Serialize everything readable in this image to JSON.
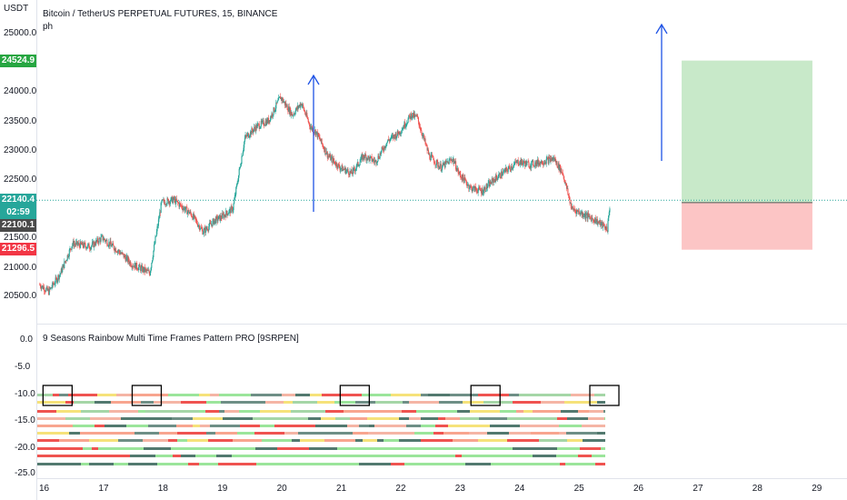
{
  "scale_unit": "USDT",
  "chart_title": "Bitcoin / TetherUS PERPETUAL FUTURES, 15, BINANCE",
  "chart_subtitle": "ph",
  "indicator_title": "9 Seasons Rainbow Multi Time Frames Pattern PRO [9SRPEN]",
  "price_axis": [
    "25000.0",
    "24500.0",
    "24000.0",
    "23500.0",
    "23000.0",
    "22500.0",
    "22000.0",
    "21500.0",
    "21000.0",
    "20500.0"
  ],
  "price_tags": {
    "target": {
      "label": "24524.9",
      "color": "#26a641"
    },
    "last": {
      "label": "22140.4",
      "color": "#26a69a"
    },
    "countdown": {
      "label": "02:59",
      "color": "#26a69a"
    },
    "entry": {
      "label": "22100.1",
      "color": "#4a4a4a"
    },
    "stop": {
      "label": "21296.5",
      "color": "#f23645"
    }
  },
  "indicator_axis": [
    "0.0",
    "-5.0",
    "-10.0",
    "-15.0",
    "-20.0",
    "-25.0"
  ],
  "time_axis": [
    "16",
    "17",
    "18",
    "19",
    "20",
    "21",
    "22",
    "23",
    "24",
    "25",
    "26",
    "27",
    "28",
    "29"
  ],
  "colors": {
    "up": "#26a69a",
    "down": "#ef5350",
    "profit": "#c8e9c9",
    "loss": "#fcc5c5",
    "arrow": "#2962ff"
  },
  "chart_data": {
    "type": "candlestick",
    "title": "Bitcoin / TetherUS PERPETUAL FUTURES, 15, BINANCE",
    "ylabel": "USDT",
    "ylim": [
      20200,
      25200
    ],
    "x_ticks": [
      "16",
      "17",
      "18",
      "19",
      "20",
      "21",
      "22",
      "23",
      "24",
      "25",
      "26",
      "27",
      "28",
      "29"
    ],
    "close_path": [
      [
        15.95,
        20700
      ],
      [
        16.1,
        20580
      ],
      [
        16.3,
        20900
      ],
      [
        16.5,
        21400
      ],
      [
        16.8,
        21350
      ],
      [
        17.0,
        21500
      ],
      [
        17.3,
        21250
      ],
      [
        17.5,
        21050
      ],
      [
        17.8,
        20900
      ],
      [
        18.0,
        22100
      ],
      [
        18.2,
        22150
      ],
      [
        18.5,
        21900
      ],
      [
        18.7,
        21600
      ],
      [
        18.9,
        21800
      ],
      [
        19.0,
        21850
      ],
      [
        19.2,
        22000
      ],
      [
        19.4,
        23200
      ],
      [
        19.6,
        23400
      ],
      [
        19.8,
        23500
      ],
      [
        20.0,
        23900
      ],
      [
        20.2,
        23600
      ],
      [
        20.35,
        23800
      ],
      [
        20.5,
        23400
      ],
      [
        20.6,
        23300
      ],
      [
        20.8,
        22900
      ],
      [
        21.0,
        22700
      ],
      [
        21.2,
        22600
      ],
      [
        21.4,
        22900
      ],
      [
        21.6,
        22800
      ],
      [
        21.8,
        23150
      ],
      [
        22.0,
        23300
      ],
      [
        22.2,
        23600
      ],
      [
        22.3,
        23550
      ],
      [
        22.5,
        22900
      ],
      [
        22.7,
        22700
      ],
      [
        22.9,
        22850
      ],
      [
        23.0,
        22600
      ],
      [
        23.2,
        22350
      ],
      [
        23.4,
        22300
      ],
      [
        23.6,
        22500
      ],
      [
        23.8,
        22650
      ],
      [
        24.0,
        22800
      ],
      [
        24.2,
        22750
      ],
      [
        24.4,
        22800
      ],
      [
        24.6,
        22850
      ],
      [
        24.75,
        22600
      ],
      [
        24.9,
        22000
      ],
      [
        25.1,
        21900
      ],
      [
        25.3,
        21800
      ],
      [
        25.5,
        21650
      ],
      [
        25.55,
        22140
      ]
    ],
    "last_price": 22140.4,
    "long_position": {
      "entry": 22100.1,
      "target": 24524.9,
      "stop": 21296.5,
      "from_day": 26.75,
      "to_day": 28.95
    }
  },
  "indicator_data": {
    "type": "heatmap",
    "ylim": [
      -25,
      0
    ],
    "rows": 9,
    "row_values": [
      -10,
      -12,
      -14,
      -16,
      -18,
      -20,
      -22,
      -23.5,
      -25
    ],
    "highlight_days": [
      16.25,
      17.75,
      21.25,
      23.45,
      25.45
    ]
  }
}
